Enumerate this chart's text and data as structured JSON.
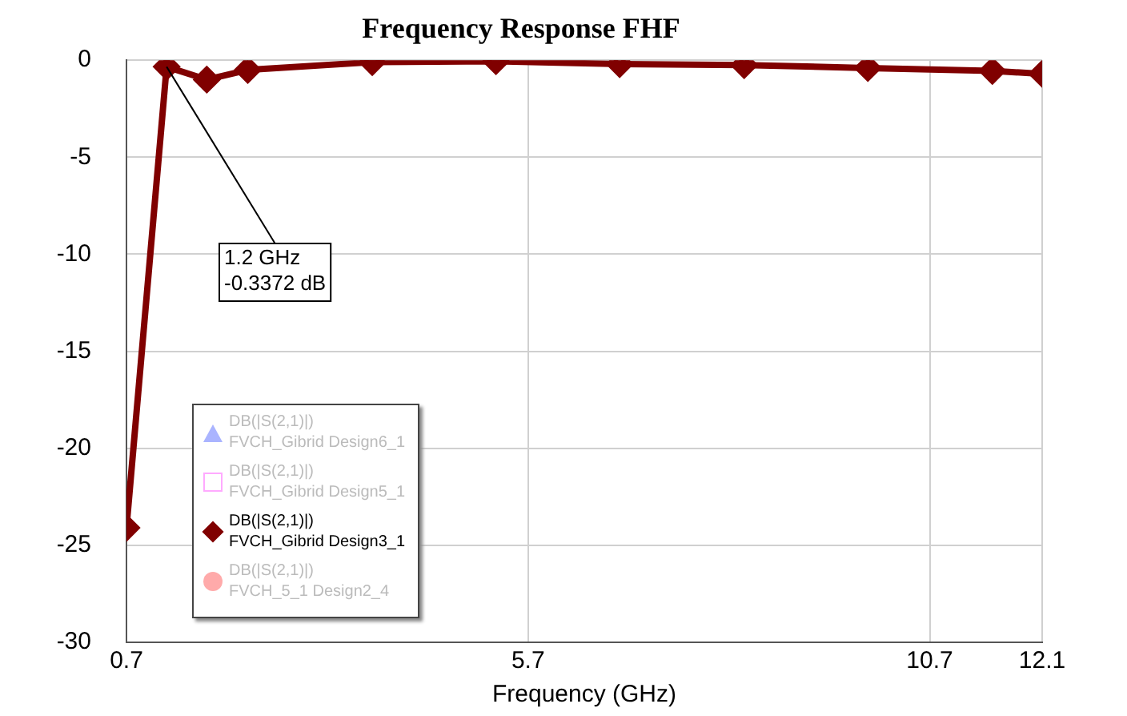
{
  "chart_data": {
    "type": "line",
    "title": "Frequency Response FHF",
    "xlabel": "Frequency (GHz)",
    "x": [
      0.7,
      1.2,
      1.7,
      2.21,
      3.76,
      5.3,
      6.84,
      8.39,
      9.93,
      11.48,
      12.1
    ],
    "series": [
      {
        "name": "DB(|S(2,1)|)\nFVCH_Gibrid Design6_1",
        "color": "#aab4ff",
        "marker": "triangle",
        "values": [
          null,
          null,
          null,
          null,
          null,
          null,
          null,
          null,
          null,
          null,
          null
        ]
      },
      {
        "name": "DB(|S(2,1)|)\nFVCH_Gibrid Design5_1",
        "color": "#ffaaff",
        "marker": "square",
        "values": [
          null,
          null,
          null,
          null,
          null,
          null,
          null,
          null,
          null,
          null,
          null
        ]
      },
      {
        "name": "DB(|S(2,1)|)\nFVCH_Gibrid Design3_1",
        "color": "#800000",
        "marker": "diamond",
        "values": [
          -24.1,
          -0.3372,
          -1.0,
          -0.5,
          -0.1,
          -0.05,
          -0.2,
          -0.25,
          -0.4,
          -0.55,
          -0.7
        ]
      },
      {
        "name": "DB(|S(2,1)|)\nFVCH_5_1 Design2_4",
        "color": "#ffaaaa",
        "marker": "circle",
        "values": [
          null,
          null,
          null,
          null,
          null,
          null,
          null,
          null,
          null,
          null,
          null
        ]
      }
    ],
    "xlim": [
      0.7,
      12.1
    ],
    "xticks": [
      0.7,
      5.7,
      10.7,
      12.1
    ],
    "ylim": [
      -30,
      0
    ],
    "yticks": [
      -30,
      -25,
      -20,
      -15,
      -10,
      -5,
      0
    ],
    "grid": true,
    "legend": "bottom left",
    "line_style": "solid",
    "annotations": [
      {
        "text": "1.2 GHz\n-0.3372 dB",
        "x": 1.2,
        "y": -0.3372
      }
    ]
  }
}
